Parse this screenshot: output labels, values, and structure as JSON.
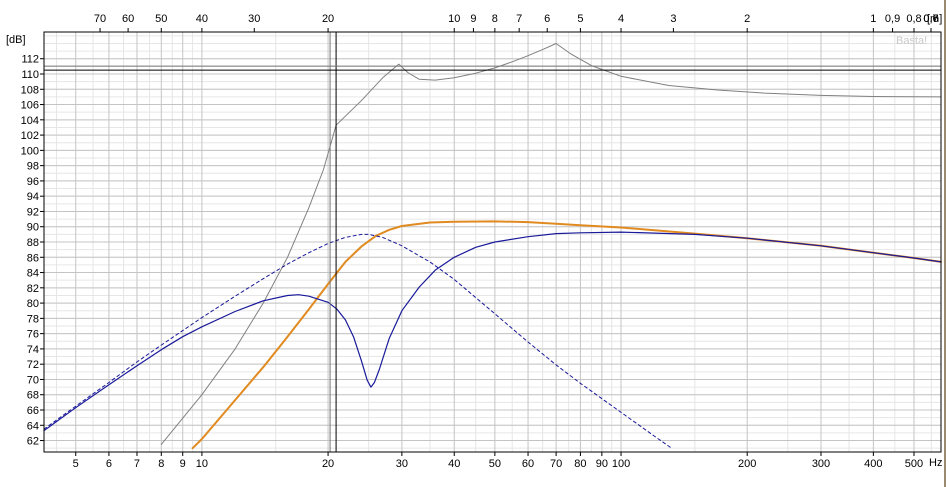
{
  "chart_data": {
    "type": "line",
    "title": "",
    "ylabel": "[dB]",
    "xunit": "Hz",
    "top_axis_unit": "[m]",
    "watermark": "Basta!",
    "x_scale": "log",
    "xlim": [
      4.2,
      580
    ],
    "ylim": [
      60.5,
      115.5
    ],
    "grid": true,
    "yticks": [
      62,
      64,
      66,
      68,
      70,
      72,
      74,
      76,
      78,
      80,
      82,
      84,
      86,
      88,
      90,
      92,
      94,
      96,
      98,
      100,
      102,
      104,
      106,
      108,
      110,
      112
    ],
    "xticks": [
      {
        "value": 5,
        "label": "5"
      },
      {
        "value": 6,
        "label": "6"
      },
      {
        "value": 7,
        "label": "7"
      },
      {
        "value": 8,
        "label": "8"
      },
      {
        "value": 9,
        "label": "9"
      },
      {
        "value": 10,
        "label": "10"
      },
      {
        "value": 20,
        "label": "20"
      },
      {
        "value": 30,
        "label": "30"
      },
      {
        "value": 40,
        "label": "40"
      },
      {
        "value": 50,
        "label": "50"
      },
      {
        "value": 60,
        "label": "60"
      },
      {
        "value": 70,
        "label": "70"
      },
      {
        "value": 80,
        "label": "80"
      },
      {
        "value": 90,
        "label": "90"
      },
      {
        "value": 100,
        "label": "100"
      },
      {
        "value": 200,
        "label": "200"
      },
      {
        "value": 300,
        "label": "300"
      },
      {
        "value": 400,
        "label": "400"
      },
      {
        "value": 500,
        "label": "500"
      }
    ],
    "top_ticks": [
      "70",
      "60",
      "50",
      "40",
      "30",
      "20",
      "10",
      "9",
      "8",
      "7",
      "6",
      "5",
      "4",
      "3",
      "2",
      "1",
      "0,9",
      "0,8",
      "0,7",
      "0,6"
    ],
    "cursor": {
      "x": 20.9,
      "y": 110.5
    },
    "series": [
      {
        "color": "#808080",
        "dash": false,
        "width": 1,
        "points": [
          [
            8,
            61.5
          ],
          [
            10,
            68
          ],
          [
            12,
            74
          ],
          [
            14,
            80
          ],
          [
            16,
            86
          ],
          [
            18,
            92.5
          ],
          [
            19.5,
            97.5
          ],
          [
            20.9,
            103.3
          ],
          [
            24,
            106.5
          ],
          [
            27,
            109.5
          ],
          [
            29.5,
            111.3
          ],
          [
            31,
            110.2
          ],
          [
            33,
            109.3
          ],
          [
            36,
            109.2
          ],
          [
            40,
            109.5
          ],
          [
            45,
            110.1
          ],
          [
            50,
            110.8
          ],
          [
            55,
            111.6
          ],
          [
            60,
            112.4
          ],
          [
            65,
            113.2
          ],
          [
            70,
            114
          ],
          [
            76,
            112.6
          ],
          [
            85,
            111.1
          ],
          [
            100,
            109.7
          ],
          [
            130,
            108.5
          ],
          [
            170,
            107.9
          ],
          [
            220,
            107.5
          ],
          [
            300,
            107.2
          ],
          [
            400,
            107.05
          ],
          [
            580,
            107
          ]
        ]
      },
      {
        "color": "#e08a20",
        "dash": false,
        "width": 2,
        "points": [
          [
            9.5,
            61
          ],
          [
            10,
            62.2
          ],
          [
            12,
            67.3
          ],
          [
            14,
            71.6
          ],
          [
            16,
            75.6
          ],
          [
            18,
            79.2
          ],
          [
            20,
            82.5
          ],
          [
            22,
            85.4
          ],
          [
            24,
            87.4
          ],
          [
            26,
            88.8
          ],
          [
            28,
            89.6
          ],
          [
            30,
            90.1
          ],
          [
            35,
            90.55
          ],
          [
            40,
            90.65
          ],
          [
            50,
            90.7
          ],
          [
            60,
            90.6
          ],
          [
            70,
            90.4
          ],
          [
            80,
            90.2
          ],
          [
            100,
            89.9
          ],
          [
            150,
            89.1
          ],
          [
            200,
            88.5
          ],
          [
            300,
            87.5
          ],
          [
            400,
            86.6
          ],
          [
            500,
            85.9
          ],
          [
            580,
            85.4
          ]
        ]
      },
      {
        "color": "#1a1a9a",
        "dash": false,
        "width": 1.2,
        "points": [
          [
            4.2,
            63.3
          ],
          [
            5,
            66.3
          ],
          [
            6,
            69.3
          ],
          [
            7,
            71.8
          ],
          [
            8,
            73.9
          ],
          [
            9,
            75.6
          ],
          [
            10,
            76.9
          ],
          [
            12,
            78.9
          ],
          [
            14,
            80.3
          ],
          [
            16,
            81
          ],
          [
            17,
            81.1
          ],
          [
            18,
            80.9
          ],
          [
            20,
            80.1
          ],
          [
            21,
            79.2
          ],
          [
            22,
            77.8
          ],
          [
            23,
            75.6
          ],
          [
            24,
            72.5
          ],
          [
            24.8,
            69.9
          ],
          [
            25.3,
            69
          ],
          [
            25.8,
            69.6
          ],
          [
            26.5,
            71.3
          ],
          [
            28,
            75.4
          ],
          [
            30,
            79
          ],
          [
            33,
            82.1
          ],
          [
            36,
            84.3
          ],
          [
            40,
            86
          ],
          [
            45,
            87.3
          ],
          [
            50,
            88
          ],
          [
            60,
            88.7
          ],
          [
            70,
            89.1
          ],
          [
            80,
            89.2
          ],
          [
            100,
            89.3
          ],
          [
            150,
            89
          ],
          [
            200,
            88.5
          ],
          [
            300,
            87.5
          ],
          [
            400,
            86.6
          ],
          [
            500,
            85.9
          ],
          [
            580,
            85.4
          ]
        ]
      },
      {
        "color": "#1a1a9a",
        "dash": true,
        "width": 1,
        "points": [
          [
            4.2,
            63.5
          ],
          [
            5,
            66.5
          ],
          [
            6,
            69.6
          ],
          [
            7,
            72.3
          ],
          [
            8,
            74.5
          ],
          [
            9,
            76.4
          ],
          [
            10,
            78.1
          ],
          [
            12,
            80.9
          ],
          [
            14,
            83.2
          ],
          [
            16,
            85.1
          ],
          [
            18,
            86.6
          ],
          [
            20,
            87.8
          ],
          [
            22,
            88.6
          ],
          [
            24,
            89
          ],
          [
            25,
            89
          ],
          [
            27,
            88.6
          ],
          [
            30,
            87.5
          ],
          [
            35,
            85.4
          ],
          [
            40,
            83.1
          ],
          [
            50,
            78.6
          ],
          [
            60,
            74.9
          ],
          [
            70,
            71.9
          ],
          [
            80,
            69.5
          ],
          [
            100,
            65.7
          ],
          [
            120,
            62.6
          ],
          [
            132,
            61
          ]
        ]
      }
    ]
  }
}
